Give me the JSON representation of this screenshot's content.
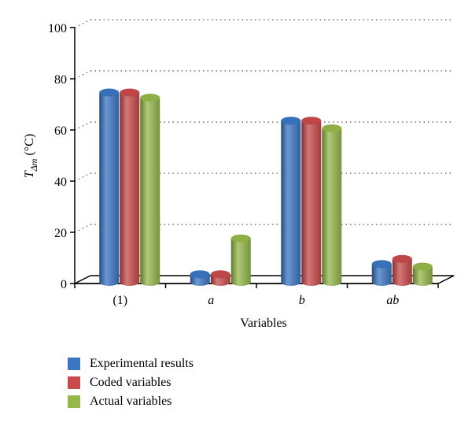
{
  "chart_data": {
    "type": "bar",
    "categories": [
      "(1)",
      "a",
      "b",
      "ab"
    ],
    "series": [
      {
        "name": "Experimental results",
        "values": [
          74,
          3,
          63,
          7
        ],
        "color": "#3a76c4"
      },
      {
        "name": "Coded variables",
        "values": [
          74,
          3,
          63,
          9
        ],
        "color": "#c84a4a"
      },
      {
        "name": "Actual variables",
        "values": [
          72,
          17,
          60,
          6
        ],
        "color": "#94b84a"
      }
    ],
    "ylim": [
      0,
      100
    ],
    "yticks": [
      0,
      20,
      40,
      60,
      80,
      100
    ],
    "xlabel": "Variables",
    "ylabel_main": "T",
    "ylabel_sub": "Δm",
    "ylabel_unit": "(°C)",
    "grid": true,
    "legend_position": "bottom-left"
  }
}
